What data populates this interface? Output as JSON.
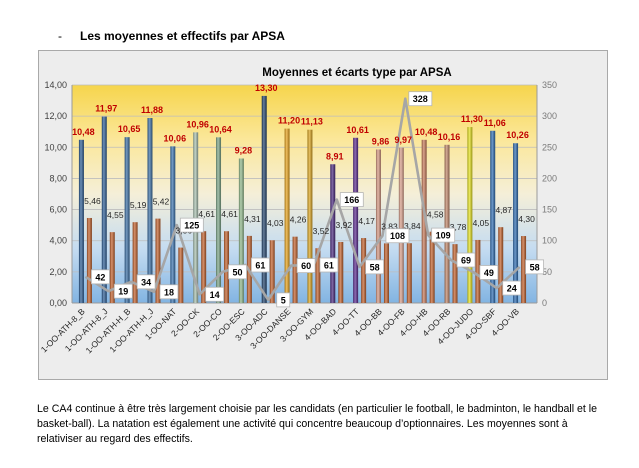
{
  "heading": {
    "bullet": "-",
    "text": "Les moyennes et effectifs par APSA"
  },
  "chart_data": {
    "type": "bar",
    "title": "Moyennes et écarts type par APSA",
    "categories": [
      "1-OO-ATH-8_B",
      "1-OO-ATH-8_J",
      "1-OO-ATH-H_B",
      "1-OO-ATH-H_J",
      "1-OO-NAT",
      "2-OO-CK",
      "2-OO-CO",
      "2-OO-ESC",
      "3-OO-ADC",
      "3-OO-DANSE",
      "3-OO-GYM",
      "4-OO-BAD",
      "4-OO-TT",
      "4-OO-BB",
      "4-OO-FB",
      "4-OO-HB",
      "4-OO-RB",
      "4-OO-JUDO",
      "4-OO-SBF",
      "4-OO-VB"
    ],
    "y_left": {
      "range": [
        0,
        14
      ],
      "ticks": [
        "0,00",
        "2,00",
        "4,00",
        "6,00",
        "8,00",
        "10,00",
        "12,00",
        "14,00"
      ]
    },
    "y_right": {
      "range": [
        0,
        350
      ],
      "ticks": [
        "0",
        "50",
        "100",
        "150",
        "200",
        "250",
        "300",
        "350"
      ]
    },
    "series": [
      {
        "type": "bar",
        "style": "cylinder",
        "axis": "left",
        "values": [
          10.48,
          11.97,
          10.65,
          11.88,
          10.06,
          10.96,
          10.64,
          9.28,
          13.3,
          11.2,
          11.13,
          8.91,
          10.61,
          9.86,
          9.97,
          10.48,
          10.16,
          11.3,
          11.06,
          10.26
        ],
        "labels": [
          "10,48",
          "11,97",
          "10,65",
          "11,88",
          "10,06",
          "10,96",
          "10,64",
          "9,28",
          "13,30",
          "11,20",
          "11,13",
          "8,91",
          "10,61",
          "9,86",
          "9,97",
          "10,48",
          "10,16",
          "11,30",
          "11,06",
          "10,26"
        ],
        "colors": [
          "#2f5f97",
          "#2f5f97",
          "#3a6ea5",
          "#3a6ea5",
          "#3b73b0",
          "#a9c1b1",
          "#7ea88a",
          "#92bb8c",
          "#24456e",
          "#e8a31c",
          "#dca520",
          "#4b2a80",
          "#5d2d91",
          "#d89a84",
          "#dba08c",
          "#c97b5a",
          "#c1876a",
          "#e6e31e",
          "#2f6db3",
          "#2f6db3"
        ],
        "label_color": "#c00000"
      },
      {
        "type": "bar",
        "style": "cylinder",
        "axis": "left",
        "values": [
          5.46,
          4.55,
          5.19,
          5.42,
          3.56,
          4.61,
          4.61,
          4.31,
          4.03,
          4.26,
          3.52,
          3.92,
          4.17,
          3.83,
          3.84,
          4.58,
          3.78,
          4.05,
          4.87,
          4.3
        ],
        "labels": [
          "5,46",
          "4,55",
          "5,19",
          "5,42",
          "3,56",
          "4,61",
          "4,61",
          "4,31",
          "4,03",
          "4,26",
          "3,52",
          "3,92",
          "4,17",
          "3,83",
          "3,84",
          "4,58",
          "3,78",
          "4,05",
          "4,87",
          "4,30"
        ],
        "color": "#c4622d",
        "label_color": "#262626"
      },
      {
        "type": "line",
        "axis": "right",
        "values": [
          42,
          19,
          34,
          18,
          125,
          14,
          50,
          61,
          5,
          60,
          61,
          166,
          58,
          108,
          328,
          109,
          69,
          49,
          24,
          58
        ],
        "labels": [
          "42",
          "19",
          "34",
          "18",
          "125",
          "14",
          "50",
          "61",
          "5",
          "60",
          "61",
          "166",
          "58",
          "108",
          "328",
          "109",
          "69",
          "49",
          "24",
          "58"
        ],
        "color": "#a6a6a6",
        "label_color": "#000000"
      }
    ],
    "grid": true,
    "legend": "none",
    "plot_background": [
      "#f6d54c",
      "#fbe79a",
      "#f5efd8",
      "#c5dcf1",
      "#82b4e2"
    ]
  },
  "paragraph": "Le CA4 continue à être très largement choisie par les candidats (en particulier le football, le badminton, le handball et le basket-ball). La natation est également une activité qui concentre beaucoup d’optionnaires. Les moyennes sont à relativiser au regard des effectifs."
}
